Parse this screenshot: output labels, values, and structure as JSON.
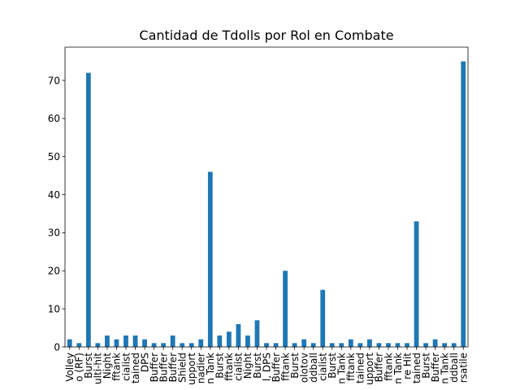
{
  "chart_data": {
    "type": "bar",
    "title": "Cantidad de Tdolls por Rol en Combate",
    "xlabel": "",
    "ylabel": "",
    "ylim": [
      0,
      78.75
    ],
    "yticks": [
      0,
      10,
      20,
      30,
      40,
      50,
      60,
      70
    ],
    "grid": false,
    "legend": "none",
    "bar_color": "#1f77b4",
    "categories": [
      "Volley",
      "o (RF)",
      "Burst",
      "ulti-hit",
      "Night",
      "fftank",
      "cialist",
      "tained",
      "DPS",
      "Buffer",
      "Buffer",
      "Buffer",
      "Shield",
      "upport",
      "nadier",
      "n Tank",
      "Burst",
      "fftank",
      "cialist",
      "Night",
      "Burst",
      "l, DPS",
      "Buffer",
      "fftank",
      "Burst",
      "olotov",
      "ddball",
      "cialist",
      "Burst",
      "n Tank",
      "fftank",
      "tained",
      "upport",
      "Buffer",
      "fftank",
      "n Tank",
      "re Hit",
      "tained",
      "Burst",
      "Buffer",
      "n Tank",
      "ddball",
      "rsatile"
    ],
    "values": [
      2,
      1,
      72,
      1,
      3,
      2,
      3,
      3,
      2,
      1,
      1,
      3,
      1,
      1,
      2,
      46,
      3,
      4,
      6,
      3,
      7,
      1,
      1,
      20,
      1,
      2,
      1,
      15,
      1,
      1,
      2,
      1,
      2,
      1,
      1,
      1,
      1,
      33,
      1,
      2,
      1,
      1,
      75
    ]
  }
}
